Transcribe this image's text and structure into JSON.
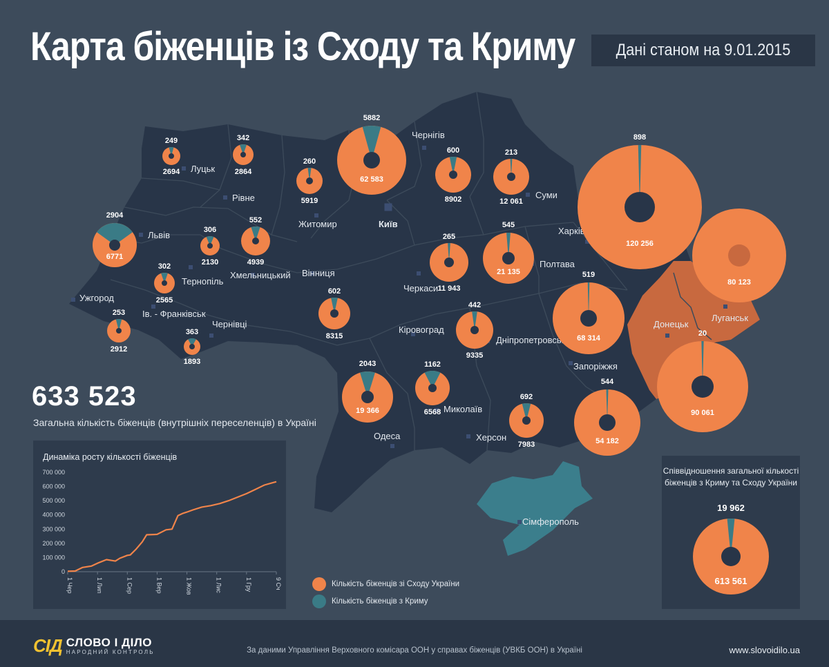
{
  "header": {
    "title": "Карта біженців із Сходу та Криму",
    "date_text": "Дані станом на 9.01.2015"
  },
  "colors": {
    "east": "#f0844a",
    "crimea": "#3a7b86",
    "map_fill": "#283548",
    "occupied": "#c8693f",
    "crimea_land": "#3b7e8c",
    "background": "#3d4b5b"
  },
  "cities": [
    {
      "id": "lutsk",
      "name": "Луцьк"
    },
    {
      "id": "rivne",
      "name": "Рівне"
    },
    {
      "id": "lviv",
      "name": "Львів"
    },
    {
      "id": "ternopil",
      "name": "Тернопіль"
    },
    {
      "id": "khmelnytskyi",
      "name": "Хмельницький"
    },
    {
      "id": "zhytomyr",
      "name": "Житомир"
    },
    {
      "id": "kyiv",
      "name": "Київ"
    },
    {
      "id": "chernihiv",
      "name": "Чернігів"
    },
    {
      "id": "sumy",
      "name": "Суми"
    },
    {
      "id": "kharkiv",
      "name": "Харків"
    },
    {
      "id": "poltava",
      "name": "Полтава"
    },
    {
      "id": "vinnytsia",
      "name": "Вінниця"
    },
    {
      "id": "cherkasy",
      "name": "Черкаси"
    },
    {
      "id": "uzhhorod",
      "name": "Ужгород"
    },
    {
      "id": "ivano_frankivsk",
      "name": "Ів. - Франківськ"
    },
    {
      "id": "chernivtsi",
      "name": "Чернівці"
    },
    {
      "id": "kirovohrad",
      "name": "Кіровоград"
    },
    {
      "id": "dnipropetrovsk",
      "name": "Дніпропетровськ"
    },
    {
      "id": "donetsk",
      "name": "Донецьк"
    },
    {
      "id": "luhansk",
      "name": "Луганськ"
    },
    {
      "id": "zaporizhzhia",
      "name": "Запоріжжя"
    },
    {
      "id": "mykolaiv",
      "name": "Миколаїв"
    },
    {
      "id": "odesa",
      "name": "Одеса"
    },
    {
      "id": "kherson",
      "name": "Херсон"
    },
    {
      "id": "simferopol",
      "name": "Сімферополь"
    }
  ],
  "regions": [
    {
      "id": "volyn",
      "east": 2694,
      "crimea": 249,
      "east_label": "2694",
      "crimea_label": "249"
    },
    {
      "id": "rivne",
      "east": 2864,
      "crimea": 342,
      "east_label": "2864",
      "crimea_label": "342"
    },
    {
      "id": "zhytomyr",
      "east": 5919,
      "crimea": 260,
      "east_label": "5919",
      "crimea_label": "260"
    },
    {
      "id": "kyiv",
      "east": 62583,
      "crimea": 5882,
      "east_label": "62 583",
      "crimea_label": "5882"
    },
    {
      "id": "chernihiv",
      "east": 8902,
      "crimea": 600,
      "east_label": "8902",
      "crimea_label": "600"
    },
    {
      "id": "sumy",
      "east": 12061,
      "crimea": 213,
      "east_label": "12 061",
      "crimea_label": "213"
    },
    {
      "id": "kharkiv",
      "east": 120256,
      "crimea": 898,
      "east_label": "120 256",
      "crimea_label": "898"
    },
    {
      "id": "luhansk",
      "east": 80123,
      "crimea": 0,
      "east_label": "80 123",
      "crimea_label": ""
    },
    {
      "id": "donetsk",
      "east": 90061,
      "crimea": 20,
      "east_label": "90 061",
      "crimea_label": "20"
    },
    {
      "id": "lviv",
      "east": 6771,
      "crimea": 2904,
      "east_label": "6771",
      "crimea_label": "2904"
    },
    {
      "id": "ternopil",
      "east": 2130,
      "crimea": 306,
      "east_label": "2130",
      "crimea_label": "306"
    },
    {
      "id": "khmelnytskyi",
      "east": 4939,
      "crimea": 552,
      "east_label": "4939",
      "crimea_label": "552"
    },
    {
      "id": "ivano_frankivsk",
      "east": 2565,
      "crimea": 302,
      "east_label": "2565",
      "crimea_label": "302"
    },
    {
      "id": "zakarpattia",
      "east": 2912,
      "crimea": 253,
      "east_label": "2912",
      "crimea_label": "253"
    },
    {
      "id": "chernivtsi",
      "east": 1893,
      "crimea": 363,
      "east_label": "1893",
      "crimea_label": "363"
    },
    {
      "id": "vinnytsia",
      "east": 8315,
      "crimea": 602,
      "east_label": "8315",
      "crimea_label": "602"
    },
    {
      "id": "cherkasy",
      "east": 11943,
      "crimea": 265,
      "east_label": "11 943",
      "crimea_label": "265"
    },
    {
      "id": "poltava",
      "east": 21135,
      "crimea": 545,
      "east_label": "21 135",
      "crimea_label": "545"
    },
    {
      "id": "dnipropetrovsk",
      "east": 68314,
      "crimea": 519,
      "east_label": "68 314",
      "crimea_label": "519"
    },
    {
      "id": "kirovohrad",
      "east": 9335,
      "crimea": 442,
      "east_label": "9335",
      "crimea_label": "442"
    },
    {
      "id": "odesa",
      "east": 19366,
      "crimea": 2043,
      "east_label": "19 366",
      "crimea_label": "2043"
    },
    {
      "id": "mykolaiv",
      "east": 6568,
      "crimea": 1162,
      "east_label": "6568",
      "crimea_label": "1162"
    },
    {
      "id": "kherson",
      "east": 7983,
      "crimea": 692,
      "east_label": "7983",
      "crimea_label": "692"
    },
    {
      "id": "zaporizhzhia",
      "east": 54182,
      "crimea": 544,
      "east_label": "54 182",
      "crimea_label": "544"
    }
  ],
  "total": {
    "value": "633 523",
    "caption": "Загальна кількість біженців (внутрішніх переселенців) в Україні"
  },
  "chart_data": {
    "type": "line",
    "title": "Динаміка росту кількості біженців",
    "xlabel": "",
    "ylabel": "",
    "ylim": [
      0,
      700000
    ],
    "yticks": [
      0,
      100000,
      200000,
      300000,
      400000,
      500000,
      600000,
      700000
    ],
    "ytick_labels": [
      "0",
      "100 000",
      "200 000",
      "300 000",
      "400 000",
      "500 000",
      "600 000",
      "700 000"
    ],
    "categories": [
      "1 Чер",
      "1 Лип",
      "1 Сер",
      "1 Вер",
      "1 Жов",
      "1 Лис",
      "1 Гру",
      "9 Сч"
    ],
    "series": [
      {
        "name": "Кількість біженців",
        "x": [
          0,
          0.25,
          0.5,
          0.8,
          1.0,
          1.3,
          1.6,
          1.75,
          2.0,
          2.1,
          2.3,
          2.5,
          2.65,
          2.9,
          3.0,
          3.3,
          3.5,
          3.7,
          3.85,
          4.0,
          4.2,
          4.5,
          4.8,
          5.1,
          5.4,
          5.7,
          6.0,
          6.3,
          6.6,
          6.85,
          7.0
        ],
        "values": [
          3000,
          5000,
          30000,
          40000,
          60000,
          85000,
          75000,
          95000,
          115000,
          118000,
          160000,
          210000,
          260000,
          262000,
          263000,
          295000,
          300000,
          395000,
          410000,
          420000,
          435000,
          455000,
          465000,
          480000,
          500000,
          525000,
          550000,
          580000,
          610000,
          625000,
          633523
        ]
      }
    ]
  },
  "legend": {
    "east_label": "Кількість біженців зі Сходу України",
    "crimea_label": "Кількість біженців з Криму"
  },
  "ratio": {
    "title_line1": "Співвідношення загальної кількості",
    "title_line2": "біженців з Криму та Сходу України",
    "crimea": 19962,
    "east": 613561,
    "crimea_label": "19 962",
    "east_label": "613 561"
  },
  "footer": {
    "logo_mark": "СІД",
    "logo_main": "СЛОВО І ДІЛО",
    "logo_sub": "НАРОДНИЙ КОНТРОЛЬ",
    "source": "За даними  Управління Верховного комісара ООН у справах біженців (УВКБ ООН) в Україні",
    "site": "www.slovoidilo.ua"
  }
}
